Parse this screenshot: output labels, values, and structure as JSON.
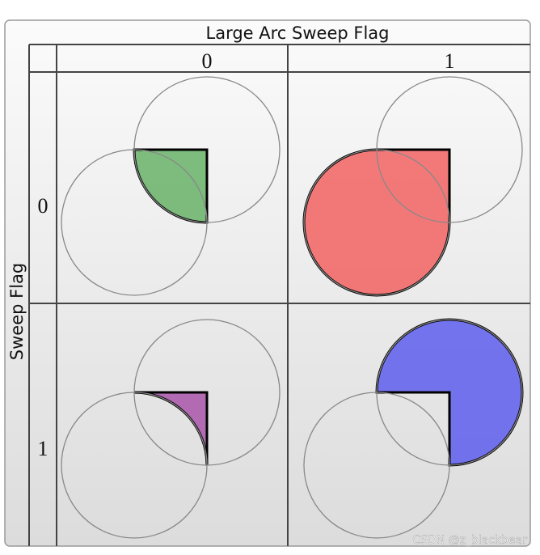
{
  "header": {
    "title": "Large Arc Sweep Flag",
    "columns": [
      "0",
      "1"
    ]
  },
  "rows": {
    "title": "Sweep Flag",
    "labels": [
      "0",
      "1"
    ]
  },
  "watermark": "CSDN @z_blackbear"
}
